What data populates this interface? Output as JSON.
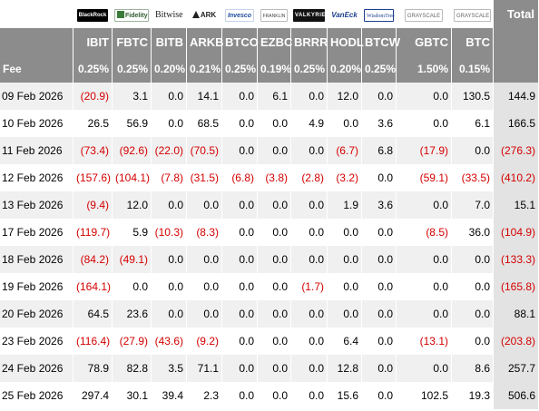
{
  "chart_data": {
    "type": "table",
    "title": "",
    "total_label": "Total",
    "fee_label": "Fee",
    "issuers": [
      {
        "logo": "BlackRock",
        "logo_icon": "blackrock-logo",
        "ticker": "IBIT",
        "fee": "0.25%"
      },
      {
        "logo": "Fidelity",
        "logo_icon": "fidelity-logo",
        "ticker": "FBTC",
        "fee": "0.25%"
      },
      {
        "logo": "Bitwise",
        "logo_icon": "bitwise-logo",
        "ticker": "BITB",
        "fee": "0.20%"
      },
      {
        "logo": "ARK",
        "logo_icon": "ark-logo",
        "ticker": "ARKB",
        "fee": "0.21%"
      },
      {
        "logo": "Invesco",
        "logo_icon": "invesco-logo",
        "ticker": "BTCO",
        "fee": "0.25%"
      },
      {
        "logo": "FRANKLIN",
        "logo_icon": "franklin-templeton-logo",
        "ticker": "EZBC",
        "fee": "0.19%"
      },
      {
        "logo": "VALKYRIE",
        "logo_icon": "valkyrie-logo",
        "ticker": "BRRR",
        "fee": "0.25%"
      },
      {
        "logo": "VanEck",
        "logo_icon": "vaneck-logo",
        "ticker": "HODL",
        "fee": "0.20%"
      },
      {
        "logo": "WisdomTree",
        "logo_icon": "wisdomtree-logo",
        "ticker": "BTCW",
        "fee": "0.25%"
      },
      {
        "logo": "GRAYSCALE",
        "logo_icon": "grayscale-logo",
        "ticker": "GBTC",
        "fee": "1.50%"
      },
      {
        "logo": "GRAYSCALE",
        "logo_icon": "grayscale-logo",
        "ticker": "BTC",
        "fee": "0.15%"
      }
    ],
    "rows": [
      {
        "date": "09 Feb 2026",
        "values": [
          "(20.9)",
          "3.1",
          "0.0",
          "14.1",
          "0.0",
          "6.1",
          "0.0",
          "12.0",
          "0.0",
          "0.0",
          "130.5"
        ],
        "total": "144.9"
      },
      {
        "date": "10 Feb 2026",
        "values": [
          "26.5",
          "56.9",
          "0.0",
          "68.5",
          "0.0",
          "0.0",
          "4.9",
          "0.0",
          "3.6",
          "0.0",
          "6.1"
        ],
        "total": "166.5"
      },
      {
        "date": "11 Feb 2026",
        "values": [
          "(73.4)",
          "(92.6)",
          "(22.0)",
          "(70.5)",
          "0.0",
          "0.0",
          "0.0",
          "(6.7)",
          "6.8",
          "(17.9)",
          "0.0"
        ],
        "total": "(276.3)"
      },
      {
        "date": "12 Feb 2026",
        "values": [
          "(157.6)",
          "(104.1)",
          "(7.8)",
          "(31.5)",
          "(6.8)",
          "(3.8)",
          "(2.8)",
          "(3.2)",
          "0.0",
          "(59.1)",
          "(33.5)"
        ],
        "total": "(410.2)"
      },
      {
        "date": "13 Feb 2026",
        "values": [
          "(9.4)",
          "12.0",
          "0.0",
          "0.0",
          "0.0",
          "0.0",
          "0.0",
          "1.9",
          "3.6",
          "0.0",
          "7.0"
        ],
        "total": "15.1"
      },
      {
        "date": "17 Feb 2026",
        "values": [
          "(119.7)",
          "5.9",
          "(10.3)",
          "(8.3)",
          "0.0",
          "0.0",
          "0.0",
          "0.0",
          "0.0",
          "(8.5)",
          "36.0"
        ],
        "total": "(104.9)"
      },
      {
        "date": "18 Feb 2026",
        "values": [
          "(84.2)",
          "(49.1)",
          "0.0",
          "0.0",
          "0.0",
          "0.0",
          "0.0",
          "0.0",
          "0.0",
          "0.0",
          "0.0"
        ],
        "total": "(133.3)"
      },
      {
        "date": "19 Feb 2026",
        "values": [
          "(164.1)",
          "0.0",
          "0.0",
          "0.0",
          "0.0",
          "0.0",
          "(1.7)",
          "0.0",
          "0.0",
          "0.0",
          "0.0"
        ],
        "total": "(165.8)"
      },
      {
        "date": "20 Feb 2026",
        "values": [
          "64.5",
          "23.6",
          "0.0",
          "0.0",
          "0.0",
          "0.0",
          "0.0",
          "0.0",
          "0.0",
          "0.0",
          "0.0"
        ],
        "total": "88.1"
      },
      {
        "date": "23 Feb 2026",
        "values": [
          "(116.4)",
          "(27.9)",
          "(43.6)",
          "(9.2)",
          "0.0",
          "0.0",
          "0.0",
          "6.4",
          "0.0",
          "(13.1)",
          "0.0"
        ],
        "total": "(203.8)"
      },
      {
        "date": "24 Feb 2026",
        "values": [
          "78.9",
          "82.8",
          "3.5",
          "71.1",
          "0.0",
          "0.0",
          "0.0",
          "12.8",
          "0.0",
          "0.0",
          "8.6"
        ],
        "total": "257.7"
      },
      {
        "date": "25 Feb 2026",
        "values": [
          "297.4",
          "30.1",
          "39.4",
          "2.3",
          "0.0",
          "0.0",
          "0.0",
          "15.6",
          "0.0",
          "102.5",
          "19.3"
        ],
        "total": "506.6"
      }
    ]
  },
  "colors": {
    "header_bg": "#8c8c8c",
    "negative": "#d40000",
    "row_stripe": "#f0f0f0",
    "total_column_bg": "#e3e3e3"
  }
}
